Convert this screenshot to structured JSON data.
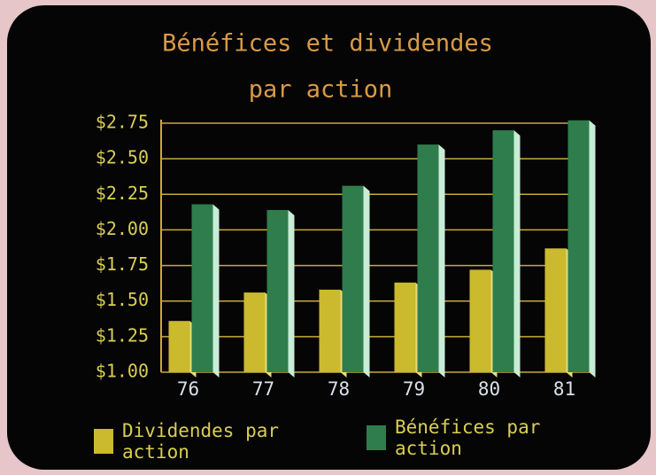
{
  "chart_data": {
    "type": "bar",
    "title": [
      "Bénéfices et dividendes",
      "par action"
    ],
    "categories": [
      "76",
      "77",
      "78",
      "79",
      "80",
      "81"
    ],
    "series": [
      {
        "name": "Dividendes par action",
        "color": "#cbb92e",
        "values": [
          1.36,
          1.56,
          1.58,
          1.63,
          1.72,
          1.87
        ]
      },
      {
        "name": "Bénéfices par action",
        "color": "#2f7d4c",
        "values": [
          2.18,
          2.14,
          2.31,
          2.6,
          2.7,
          2.77
        ]
      }
    ],
    "ylim": [
      1,
      2.75
    ],
    "yticks": [
      {
        "value": 1,
        "label": "$1.00"
      },
      {
        "value": 1.25,
        "label": "$1.25"
      },
      {
        "value": 1.5,
        "label": "$1.50"
      },
      {
        "value": 1.75,
        "label": "$1.75"
      },
      {
        "value": 2,
        "label": "$2.00"
      },
      {
        "value": 2.25,
        "label": "$2.25"
      },
      {
        "value": 2.5,
        "label": "$2.50"
      },
      {
        "value": 2.75,
        "label": "$2.75"
      }
    ],
    "grid": true
  }
}
